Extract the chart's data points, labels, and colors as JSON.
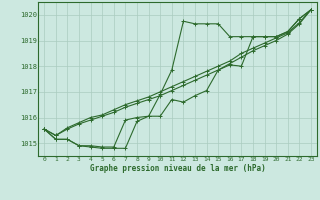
{
  "bg_color": "#cce8e0",
  "grid_color": "#aaccbf",
  "line_color": "#2d6a2d",
  "text_color": "#2d6a2d",
  "xlabel": "Graphe pression niveau de la mer (hPa)",
  "ylim": [
    1014.5,
    1020.5
  ],
  "xlim": [
    -0.5,
    23.5
  ],
  "yticks": [
    1015,
    1016,
    1017,
    1018,
    1019,
    1020
  ],
  "xticks": [
    0,
    1,
    2,
    3,
    4,
    5,
    6,
    7,
    8,
    9,
    10,
    11,
    12,
    13,
    14,
    15,
    16,
    17,
    18,
    19,
    20,
    21,
    22,
    23
  ],
  "series_main": [
    1015.55,
    1015.15,
    1015.15,
    1014.9,
    1014.9,
    1014.85,
    1014.85,
    1015.9,
    1016.0,
    1016.05,
    1016.9,
    1017.85,
    1019.75,
    1019.65,
    1019.65,
    1019.65,
    1019.15,
    1019.15,
    1019.15,
    1019.15,
    1019.15,
    1019.35,
    1019.85,
    1020.2
  ],
  "series_straight1": [
    1015.55,
    1015.3,
    1015.6,
    1015.8,
    1016.0,
    1016.1,
    1016.3,
    1016.5,
    1016.65,
    1016.8,
    1017.0,
    1017.2,
    1017.4,
    1017.6,
    1017.8,
    1018.0,
    1018.2,
    1018.5,
    1018.7,
    1018.9,
    1019.1,
    1019.3,
    1019.7,
    1020.2
  ],
  "series_straight2": [
    1015.55,
    1015.3,
    1015.55,
    1015.75,
    1015.9,
    1016.05,
    1016.2,
    1016.4,
    1016.55,
    1016.7,
    1016.85,
    1017.05,
    1017.25,
    1017.45,
    1017.65,
    1017.85,
    1018.1,
    1018.35,
    1018.6,
    1018.8,
    1019.0,
    1019.25,
    1019.65,
    1020.2
  ],
  "series_zigzag": [
    1015.55,
    1015.15,
    1015.15,
    1014.9,
    1014.85,
    1014.8,
    1014.8,
    1014.8,
    1015.85,
    1016.05,
    1016.05,
    1016.7,
    1016.6,
    1016.85,
    1017.05,
    1017.85,
    1018.05,
    1018.0,
    1019.15,
    1019.15,
    1019.15,
    1019.35,
    1019.85,
    1020.2
  ]
}
